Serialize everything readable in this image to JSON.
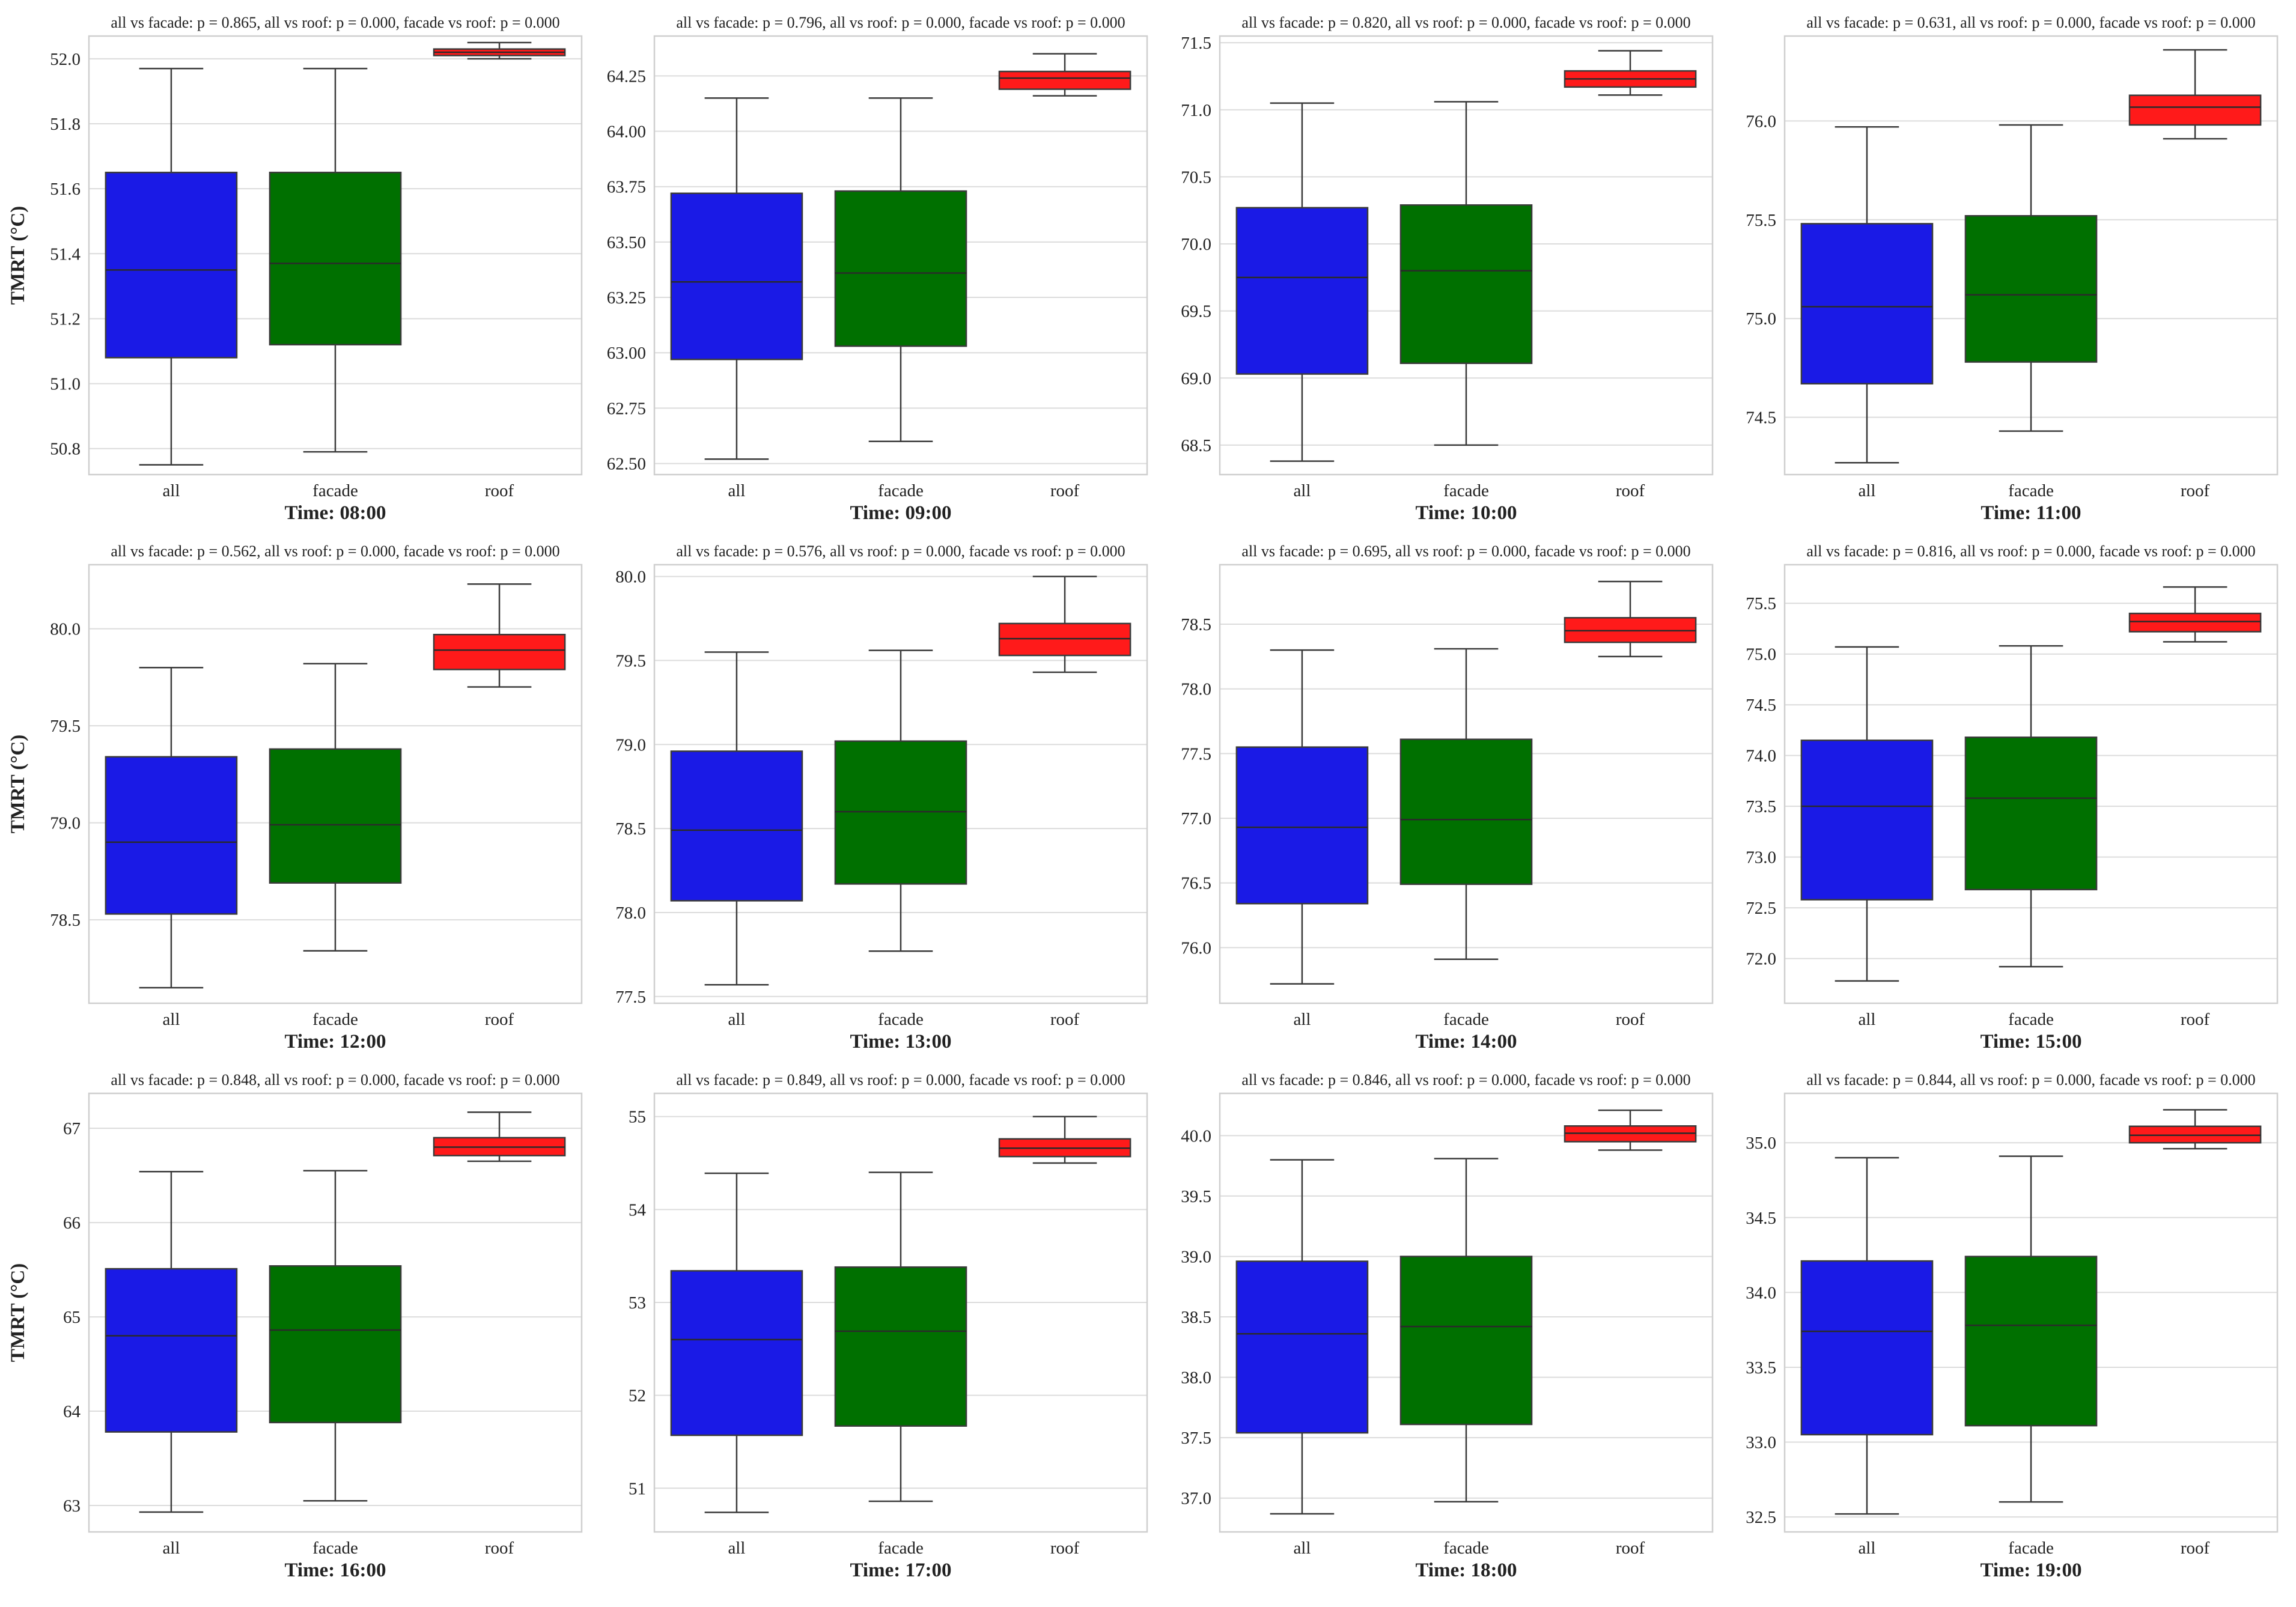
{
  "chart_data": [
    {
      "type": "box",
      "title": "all vs facade: p = 0.865, all vs roof: p = 0.000, facade vs roof: p = 0.000",
      "xlabel": "Time: 08:00",
      "ylabel": "TMRT (°C)",
      "categories": [
        "all",
        "facade",
        "roof"
      ],
      "ylim": [
        50.72,
        52.07
      ],
      "yticks": [
        50.8,
        51.0,
        51.2,
        51.4,
        51.6,
        51.8,
        52.0
      ],
      "ytick_labels": [
        "50.8",
        "51.0",
        "51.2",
        "51.4",
        "51.6",
        "51.8",
        "52.0"
      ],
      "series": [
        {
          "name": "all",
          "whislo": 50.75,
          "q1": 51.08,
          "med": 51.35,
          "q3": 51.65,
          "whishi": 51.97
        },
        {
          "name": "facade",
          "whislo": 50.79,
          "q1": 51.12,
          "med": 51.37,
          "q3": 51.65,
          "whishi": 51.97
        },
        {
          "name": "roof",
          "whislo": 52.0,
          "q1": 52.01,
          "med": 52.02,
          "q3": 52.03,
          "whishi": 52.05
        }
      ]
    },
    {
      "type": "box",
      "title": "all vs facade: p = 0.796, all vs roof: p = 0.000, facade vs roof: p = 0.000",
      "xlabel": "Time: 09:00",
      "ylabel": "",
      "categories": [
        "all",
        "facade",
        "roof"
      ],
      "ylim": [
        62.45,
        64.43
      ],
      "yticks": [
        62.5,
        62.75,
        63.0,
        63.25,
        63.5,
        63.75,
        64.0,
        64.25
      ],
      "ytick_labels": [
        "62.50",
        "62.75",
        "63.00",
        "63.25",
        "63.50",
        "63.75",
        "64.00",
        "64.25"
      ],
      "series": [
        {
          "name": "all",
          "whislo": 62.52,
          "q1": 62.97,
          "med": 63.32,
          "q3": 63.72,
          "whishi": 64.15
        },
        {
          "name": "facade",
          "whislo": 62.6,
          "q1": 63.03,
          "med": 63.36,
          "q3": 63.73,
          "whishi": 64.15
        },
        {
          "name": "roof",
          "whislo": 64.16,
          "q1": 64.19,
          "med": 64.24,
          "q3": 64.27,
          "whishi": 64.35
        }
      ]
    },
    {
      "type": "box",
      "title": "all vs facade: p = 0.820, all vs roof: p = 0.000, facade vs roof: p = 0.000",
      "xlabel": "Time: 10:00",
      "ylabel": "",
      "categories": [
        "all",
        "facade",
        "roof"
      ],
      "ylim": [
        68.28,
        71.55
      ],
      "yticks": [
        68.5,
        69.0,
        69.5,
        70.0,
        70.5,
        71.0,
        71.5
      ],
      "ytick_labels": [
        "68.5",
        "69.0",
        "69.5",
        "70.0",
        "70.5",
        "71.0",
        "71.5"
      ],
      "series": [
        {
          "name": "all",
          "whislo": 68.38,
          "q1": 69.03,
          "med": 69.75,
          "q3": 70.27,
          "whishi": 71.05
        },
        {
          "name": "facade",
          "whislo": 68.5,
          "q1": 69.11,
          "med": 69.8,
          "q3": 70.29,
          "whishi": 71.06
        },
        {
          "name": "roof",
          "whislo": 71.11,
          "q1": 71.17,
          "med": 71.23,
          "q3": 71.29,
          "whishi": 71.44
        }
      ]
    },
    {
      "type": "box",
      "title": "all vs facade: p = 0.631, all vs roof: p = 0.000, facade vs roof: p = 0.000",
      "xlabel": "Time: 11:00",
      "ylabel": "",
      "categories": [
        "all",
        "facade",
        "roof"
      ],
      "ylim": [
        74.21,
        76.43
      ],
      "yticks": [
        74.5,
        75.0,
        75.5,
        76.0
      ],
      "ytick_labels": [
        "74.5",
        "75.0",
        "75.5",
        "76.0"
      ],
      "series": [
        {
          "name": "all",
          "whislo": 74.27,
          "q1": 74.67,
          "med": 75.06,
          "q3": 75.48,
          "whishi": 75.97
        },
        {
          "name": "facade",
          "whislo": 74.43,
          "q1": 74.78,
          "med": 75.12,
          "q3": 75.52,
          "whishi": 75.98
        },
        {
          "name": "roof",
          "whislo": 75.91,
          "q1": 75.98,
          "med": 76.07,
          "q3": 76.13,
          "whishi": 76.36
        }
      ]
    },
    {
      "type": "box",
      "title": "all vs facade: p = 0.562, all vs roof: p = 0.000, facade vs roof: p = 0.000",
      "xlabel": "Time: 12:00",
      "ylabel": "TMRT (°C)",
      "categories": [
        "all",
        "facade",
        "roof"
      ],
      "ylim": [
        78.07,
        80.33
      ],
      "yticks": [
        78.5,
        79.0,
        79.5,
        80.0
      ],
      "ytick_labels": [
        "78.5",
        "79.0",
        "79.5",
        "80.0"
      ],
      "series": [
        {
          "name": "all",
          "whislo": 78.15,
          "q1": 78.53,
          "med": 78.9,
          "q3": 79.34,
          "whishi": 79.8
        },
        {
          "name": "facade",
          "whislo": 78.34,
          "q1": 78.69,
          "med": 78.99,
          "q3": 79.38,
          "whishi": 79.82
        },
        {
          "name": "roof",
          "whislo": 79.7,
          "q1": 79.79,
          "med": 79.89,
          "q3": 79.97,
          "whishi": 80.23
        }
      ]
    },
    {
      "type": "box",
      "title": "all vs facade: p = 0.576, all vs roof: p = 0.000, facade vs roof: p = 0.000",
      "xlabel": "Time: 13:00",
      "ylabel": "",
      "categories": [
        "all",
        "facade",
        "roof"
      ],
      "ylim": [
        77.46,
        80.07
      ],
      "yticks": [
        77.5,
        78.0,
        78.5,
        79.0,
        79.5,
        80.0
      ],
      "ytick_labels": [
        "77.5",
        "78.0",
        "78.5",
        "79.0",
        "79.5",
        "80.0"
      ],
      "series": [
        {
          "name": "all",
          "whislo": 77.57,
          "q1": 78.07,
          "med": 78.49,
          "q3": 78.96,
          "whishi": 79.55
        },
        {
          "name": "facade",
          "whislo": 77.77,
          "q1": 78.17,
          "med": 78.6,
          "q3": 79.02,
          "whishi": 79.56
        },
        {
          "name": "roof",
          "whislo": 79.43,
          "q1": 79.53,
          "med": 79.63,
          "q3": 79.72,
          "whishi": 80.0
        }
      ]
    },
    {
      "type": "box",
      "title": "all vs facade: p = 0.695, all vs roof: p = 0.000, facade vs roof: p = 0.000",
      "xlabel": "Time: 14:00",
      "ylabel": "",
      "categories": [
        "all",
        "facade",
        "roof"
      ],
      "ylim": [
        75.57,
        78.96
      ],
      "yticks": [
        76.0,
        76.5,
        77.0,
        77.5,
        78.0,
        78.5
      ],
      "ytick_labels": [
        "76.0",
        "76.5",
        "77.0",
        "77.5",
        "78.0",
        "78.5"
      ],
      "series": [
        {
          "name": "all",
          "whislo": 75.72,
          "q1": 76.34,
          "med": 76.93,
          "q3": 77.55,
          "whishi": 78.3
        },
        {
          "name": "facade",
          "whislo": 75.91,
          "q1": 76.49,
          "med": 76.99,
          "q3": 77.61,
          "whishi": 78.31
        },
        {
          "name": "roof",
          "whislo": 78.25,
          "q1": 78.36,
          "med": 78.45,
          "q3": 78.55,
          "whishi": 78.83
        }
      ]
    },
    {
      "type": "box",
      "title": "all vs facade: p = 0.816, all vs roof: p = 0.000, facade vs roof: p = 0.000",
      "xlabel": "Time: 15:00",
      "ylabel": "",
      "categories": [
        "all",
        "facade",
        "roof"
      ],
      "ylim": [
        71.56,
        75.88
      ],
      "yticks": [
        72.0,
        72.5,
        73.0,
        73.5,
        74.0,
        74.5,
        75.0,
        75.5
      ],
      "ytick_labels": [
        "72.0",
        "72.5",
        "73.0",
        "73.5",
        "74.0",
        "74.5",
        "75.0",
        "75.5"
      ],
      "series": [
        {
          "name": "all",
          "whislo": 71.78,
          "q1": 72.58,
          "med": 73.5,
          "q3": 74.15,
          "whishi": 75.07
        },
        {
          "name": "facade",
          "whislo": 71.92,
          "q1": 72.68,
          "med": 73.58,
          "q3": 74.18,
          "whishi": 75.08
        },
        {
          "name": "roof",
          "whislo": 75.12,
          "q1": 75.22,
          "med": 75.32,
          "q3": 75.4,
          "whishi": 75.66
        }
      ]
    },
    {
      "type": "box",
      "title": "all vs facade: p = 0.848, all vs roof: p = 0.000, facade vs roof: p = 0.000",
      "xlabel": "Time: 16:00",
      "ylabel": "TMRT (°C)",
      "categories": [
        "all",
        "facade",
        "roof"
      ],
      "ylim": [
        62.72,
        67.37
      ],
      "yticks": [
        63,
        64,
        65,
        66,
        67
      ],
      "ytick_labels": [
        "63",
        "64",
        "65",
        "66",
        "67"
      ],
      "series": [
        {
          "name": "all",
          "whislo": 62.93,
          "q1": 63.78,
          "med": 64.8,
          "q3": 65.51,
          "whishi": 66.54
        },
        {
          "name": "facade",
          "whislo": 63.05,
          "q1": 63.88,
          "med": 64.86,
          "q3": 65.54,
          "whishi": 66.55
        },
        {
          "name": "roof",
          "whislo": 66.65,
          "q1": 66.71,
          "med": 66.8,
          "q3": 66.9,
          "whishi": 67.17
        }
      ]
    },
    {
      "type": "box",
      "title": "all vs facade: p = 0.849, all vs roof: p = 0.000, facade vs roof: p = 0.000",
      "xlabel": "Time: 17:00",
      "ylabel": "",
      "categories": [
        "all",
        "facade",
        "roof"
      ],
      "ylim": [
        50.53,
        55.25
      ],
      "yticks": [
        51,
        52,
        53,
        54,
        55
      ],
      "ytick_labels": [
        "51",
        "52",
        "53",
        "54",
        "55"
      ],
      "series": [
        {
          "name": "all",
          "whislo": 50.74,
          "q1": 51.57,
          "med": 52.6,
          "q3": 53.34,
          "whishi": 54.39
        },
        {
          "name": "facade",
          "whislo": 50.86,
          "q1": 51.67,
          "med": 52.69,
          "q3": 53.38,
          "whishi": 54.4
        },
        {
          "name": "roof",
          "whislo": 54.5,
          "q1": 54.57,
          "med": 54.66,
          "q3": 54.76,
          "whishi": 55.0
        }
      ]
    },
    {
      "type": "box",
      "title": "all vs facade: p = 0.846, all vs roof: p = 0.000, facade vs roof: p = 0.000",
      "xlabel": "Time: 18:00",
      "ylabel": "",
      "categories": [
        "all",
        "facade",
        "roof"
      ],
      "ylim": [
        36.72,
        40.35
      ],
      "yticks": [
        37.0,
        37.5,
        38.0,
        38.5,
        39.0,
        39.5,
        40.0
      ],
      "ytick_labels": [
        "37.0",
        "37.5",
        "38.0",
        "38.5",
        "39.0",
        "39.5",
        "40.0"
      ],
      "series": [
        {
          "name": "all",
          "whislo": 36.87,
          "q1": 37.54,
          "med": 38.36,
          "q3": 38.96,
          "whishi": 39.8
        },
        {
          "name": "facade",
          "whislo": 36.97,
          "q1": 37.61,
          "med": 38.42,
          "q3": 39.0,
          "whishi": 39.81
        },
        {
          "name": "roof",
          "whislo": 39.88,
          "q1": 39.95,
          "med": 40.02,
          "q3": 40.08,
          "whishi": 40.21
        }
      ]
    },
    {
      "type": "box",
      "title": "all vs facade: p = 0.844, all vs roof: p = 0.000, facade vs roof: p = 0.000",
      "xlabel": "Time: 19:00",
      "ylabel": "",
      "categories": [
        "all",
        "facade",
        "roof"
      ],
      "ylim": [
        32.4,
        35.33
      ],
      "yticks": [
        32.5,
        33.0,
        33.5,
        34.0,
        34.5,
        35.0
      ],
      "ytick_labels": [
        "32.5",
        "33.0",
        "33.5",
        "34.0",
        "34.5",
        "35.0"
      ],
      "series": [
        {
          "name": "all",
          "whislo": 32.52,
          "q1": 33.05,
          "med": 33.74,
          "q3": 34.21,
          "whishi": 34.9
        },
        {
          "name": "facade",
          "whislo": 32.6,
          "q1": 33.11,
          "med": 33.78,
          "q3": 34.24,
          "whishi": 34.91
        },
        {
          "name": "roof",
          "whislo": 34.96,
          "q1": 35.0,
          "med": 35.05,
          "q3": 35.11,
          "whishi": 35.22
        }
      ]
    }
  ],
  "colors": {
    "all": "#1a1ae6",
    "facade": "#007000",
    "roof": "#ff1a1a"
  }
}
